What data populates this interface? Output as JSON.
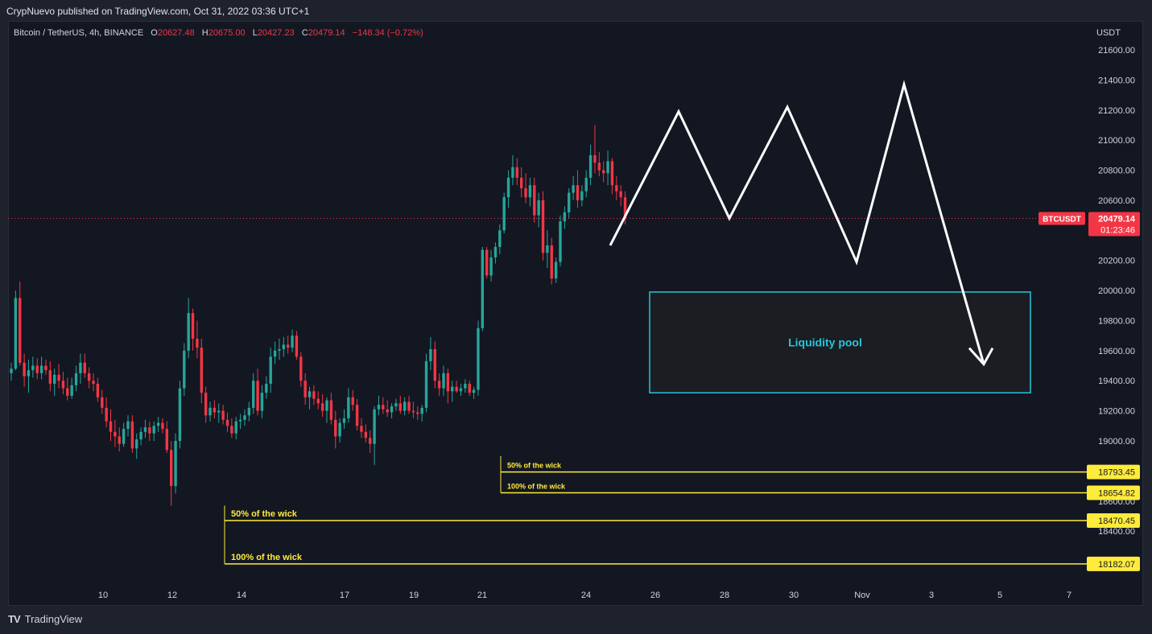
{
  "header": {
    "publisher_line": "CrypNuevo published on TradingView.com, Oct 31, 2022 03:36 UTC+1"
  },
  "legend": {
    "symbol": "Bitcoin / TetherUS, 4h, BINANCE",
    "o_label": "O",
    "o_value": "20627.48",
    "h_label": "H",
    "h_value": "20675.00",
    "l_label": "L",
    "l_value": "20427.23",
    "c_label": "C",
    "c_value": "20479.14",
    "change": "−148.34 (−0.72%)"
  },
  "footer": {
    "logo": "TV",
    "brand": "TradingView"
  },
  "colors": {
    "up": "#26a69a",
    "down": "#f23645",
    "yellow": "#ffeb3b",
    "cyan": "#26c6da",
    "white": "#ffffff",
    "bg": "#131722"
  },
  "chart_data": {
    "type": "candlestick",
    "axis_unit": "USDT",
    "y_range": [
      18000,
      21850
    ],
    "y_ticks": [
      21600,
      21400,
      21200,
      21000,
      20800,
      20600,
      20200,
      20000,
      19800,
      19600,
      19400,
      19200,
      19000,
      18800,
      18600,
      18400
    ],
    "y_tick_labels": [
      "21600.00",
      "21400.00",
      "21200.00",
      "21000.00",
      "20800.00",
      "20600.00",
      "20200.00",
      "20000.00",
      "19800.00",
      "19600.00",
      "19400.00",
      "19200.00",
      "19000.00",
      "18800.00",
      "18600.00",
      "18400.00"
    ],
    "x_labels": [
      "10",
      "12",
      "14",
      "17",
      "19",
      "21",
      "24",
      "26",
      "28",
      "30",
      "Nov",
      "3",
      "5",
      "7"
    ],
    "current_price": {
      "symbol": "BTCUSDT",
      "value": "20479.14",
      "countdown": "01:23:46",
      "price": 20479.14
    },
    "candles_ohlc": [
      [
        19450,
        19520,
        19400,
        19480
      ],
      [
        19480,
        20000,
        19470,
        19950
      ],
      [
        19950,
        20060,
        19500,
        19520
      ],
      [
        19520,
        19580,
        19360,
        19430
      ],
      [
        19430,
        19540,
        19320,
        19470
      ],
      [
        19470,
        19560,
        19420,
        19500
      ],
      [
        19500,
        19550,
        19410,
        19450
      ],
      [
        19450,
        19560,
        19410,
        19500
      ],
      [
        19500,
        19540,
        19440,
        19470
      ],
      [
        19470,
        19530,
        19330,
        19380
      ],
      [
        19380,
        19480,
        19300,
        19440
      ],
      [
        19440,
        19510,
        19350,
        19400
      ],
      [
        19400,
        19460,
        19310,
        19350
      ],
      [
        19350,
        19420,
        19270,
        19300
      ],
      [
        19300,
        19420,
        19280,
        19370
      ],
      [
        19370,
        19500,
        19330,
        19450
      ],
      [
        19450,
        19580,
        19380,
        19520
      ],
      [
        19520,
        19580,
        19420,
        19450
      ],
      [
        19450,
        19490,
        19350,
        19400
      ],
      [
        19400,
        19450,
        19330,
        19380
      ],
      [
        19380,
        19420,
        19260,
        19290
      ],
      [
        19290,
        19340,
        19180,
        19220
      ],
      [
        19220,
        19290,
        19090,
        19130
      ],
      [
        19130,
        19210,
        19000,
        19060
      ],
      [
        19060,
        19140,
        18960,
        19030
      ],
      [
        19030,
        19090,
        18930,
        18980
      ],
      [
        18980,
        19120,
        18960,
        19080
      ],
      [
        19080,
        19170,
        19030,
        19130
      ],
      [
        19130,
        19170,
        18920,
        18950
      ],
      [
        18950,
        19050,
        18880,
        19010
      ],
      [
        19010,
        19090,
        18970,
        19060
      ],
      [
        19060,
        19140,
        19020,
        19090
      ],
      [
        19090,
        19130,
        19000,
        19050
      ],
      [
        19050,
        19130,
        19000,
        19100
      ],
      [
        19100,
        19160,
        19060,
        19120
      ],
      [
        19120,
        19150,
        19050,
        19080
      ],
      [
        19080,
        19130,
        18920,
        18940
      ],
      [
        18940,
        19000,
        18570,
        18700
      ],
      [
        18700,
        19050,
        18650,
        19000
      ],
      [
        19000,
        19400,
        18950,
        19350
      ],
      [
        19350,
        19650,
        19300,
        19600
      ],
      [
        19600,
        19950,
        19550,
        19850
      ],
      [
        19850,
        19880,
        19600,
        19680
      ],
      [
        19680,
        19800,
        19550,
        19620
      ],
      [
        19620,
        19680,
        19250,
        19320
      ],
      [
        19320,
        19360,
        19120,
        19170
      ],
      [
        19170,
        19260,
        19130,
        19220
      ],
      [
        19220,
        19270,
        19150,
        19190
      ],
      [
        19190,
        19250,
        19120,
        19200
      ],
      [
        19200,
        19240,
        19110,
        19140
      ],
      [
        19140,
        19190,
        19060,
        19100
      ],
      [
        19100,
        19150,
        19020,
        19050
      ],
      [
        19050,
        19160,
        19010,
        19130
      ],
      [
        19130,
        19180,
        19080,
        19140
      ],
      [
        19140,
        19210,
        19100,
        19170
      ],
      [
        19170,
        19260,
        19130,
        19220
      ],
      [
        19220,
        19450,
        19180,
        19400
      ],
      [
        19400,
        19480,
        19170,
        19200
      ],
      [
        19200,
        19370,
        19150,
        19320
      ],
      [
        19320,
        19430,
        19280,
        19380
      ],
      [
        19380,
        19620,
        19320,
        19560
      ],
      [
        19560,
        19660,
        19510,
        19600
      ],
      [
        19600,
        19680,
        19540,
        19610
      ],
      [
        19610,
        19690,
        19560,
        19640
      ],
      [
        19640,
        19700,
        19580,
        19620
      ],
      [
        19620,
        19740,
        19590,
        19700
      ],
      [
        19700,
        19730,
        19540,
        19560
      ],
      [
        19560,
        19590,
        19360,
        19400
      ],
      [
        19400,
        19450,
        19240,
        19290
      ],
      [
        19290,
        19360,
        19210,
        19330
      ],
      [
        19330,
        19370,
        19240,
        19280
      ],
      [
        19280,
        19330,
        19210,
        19250
      ],
      [
        19250,
        19310,
        19160,
        19200
      ],
      [
        19200,
        19290,
        19120,
        19270
      ],
      [
        19270,
        19320,
        19110,
        19140
      ],
      [
        19140,
        19200,
        18950,
        19030
      ],
      [
        19030,
        19150,
        18990,
        19120
      ],
      [
        19120,
        19210,
        19080,
        19150
      ],
      [
        19150,
        19350,
        19120,
        19290
      ],
      [
        19290,
        19340,
        19200,
        19240
      ],
      [
        19240,
        19280,
        19070,
        19100
      ],
      [
        19100,
        19150,
        19020,
        19060
      ],
      [
        19060,
        19110,
        18990,
        19020
      ],
      [
        19020,
        19070,
        18920,
        18980
      ],
      [
        18980,
        19230,
        18840,
        19210
      ],
      [
        19210,
        19300,
        19170,
        19240
      ],
      [
        19240,
        19290,
        19180,
        19210
      ],
      [
        19210,
        19270,
        19160,
        19190
      ],
      [
        19190,
        19250,
        19150,
        19230
      ],
      [
        19230,
        19280,
        19200,
        19250
      ],
      [
        19250,
        19300,
        19180,
        19200
      ],
      [
        19200,
        19290,
        19170,
        19260
      ],
      [
        19260,
        19300,
        19180,
        19200
      ],
      [
        19200,
        19260,
        19150,
        19190
      ],
      [
        19190,
        19230,
        19140,
        19180
      ],
      [
        19180,
        19240,
        19130,
        19220
      ],
      [
        19220,
        19580,
        19190,
        19530
      ],
      [
        19530,
        19690,
        19470,
        19610
      ],
      [
        19610,
        19660,
        19350,
        19400
      ],
      [
        19400,
        19450,
        19300,
        19350
      ],
      [
        19350,
        19500,
        19300,
        19450
      ],
      [
        19450,
        19480,
        19250,
        19330
      ],
      [
        19330,
        19400,
        19260,
        19360
      ],
      [
        19360,
        19400,
        19320,
        19330
      ],
      [
        19330,
        19380,
        19300,
        19350
      ],
      [
        19350,
        19410,
        19320,
        19380
      ],
      [
        19380,
        19400,
        19300,
        19320
      ],
      [
        19320,
        19360,
        19280,
        19340
      ],
      [
        19340,
        19800,
        19300,
        19750
      ],
      [
        19750,
        20290,
        19730,
        20270
      ],
      [
        20270,
        20290,
        20080,
        20100
      ],
      [
        20100,
        20270,
        20060,
        20220
      ],
      [
        20220,
        20320,
        20180,
        20290
      ],
      [
        20290,
        20440,
        20240,
        20400
      ],
      [
        20400,
        20650,
        20380,
        20620
      ],
      [
        20620,
        20800,
        20550,
        20750
      ],
      [
        20750,
        20900,
        20700,
        20820
      ],
      [
        20820,
        20880,
        20700,
        20750
      ],
      [
        20750,
        20820,
        20620,
        20680
      ],
      [
        20680,
        20780,
        20580,
        20620
      ],
      [
        20620,
        20750,
        20560,
        20700
      ],
      [
        20700,
        20750,
        20450,
        20500
      ],
      [
        20500,
        20650,
        20420,
        20600
      ],
      [
        20600,
        20660,
        20200,
        20250
      ],
      [
        20250,
        20400,
        20150,
        20300
      ],
      [
        20300,
        20350,
        20040,
        20080
      ],
      [
        20080,
        20220,
        20050,
        20190
      ],
      [
        20190,
        20500,
        20160,
        20460
      ],
      [
        20460,
        20560,
        20410,
        20520
      ],
      [
        20520,
        20680,
        20480,
        20650
      ],
      [
        20650,
        20760,
        20600,
        20700
      ],
      [
        20700,
        20800,
        20550,
        20600
      ],
      [
        20600,
        20700,
        20560,
        20660
      ],
      [
        20660,
        20800,
        20620,
        20750
      ],
      [
        20750,
        20970,
        20700,
        20900
      ],
      [
        20900,
        21100,
        20780,
        20850
      ],
      [
        20850,
        20920,
        20760,
        20800
      ],
      [
        20800,
        20860,
        20720,
        20780
      ],
      [
        20780,
        20930,
        20700,
        20860
      ],
      [
        20860,
        20880,
        20640,
        20700
      ],
      [
        20700,
        20760,
        20600,
        20660
      ],
      [
        20660,
        20700,
        20560,
        20620
      ],
      [
        20620,
        20660,
        20440,
        20480
      ]
    ],
    "horizontal_levels": [
      {
        "label": "50% of the wick",
        "value": "18793.45",
        "price": 18793.45
      },
      {
        "label": "100% of the wick",
        "value": "18654.82",
        "price": 18654.82
      },
      {
        "label": "50% of the wick",
        "value": "18470.45",
        "price": 18470.45
      },
      {
        "label": "100% of the wick",
        "value": "18182.07",
        "price": 18182.07
      }
    ],
    "liquidity_zone": {
      "label": "Liquidity pool",
      "price_top": 19990,
      "price_bottom": 19320
    },
    "projection_path_prices": [
      20300,
      21190,
      20480,
      21220,
      20190,
      21370,
      19510
    ]
  }
}
